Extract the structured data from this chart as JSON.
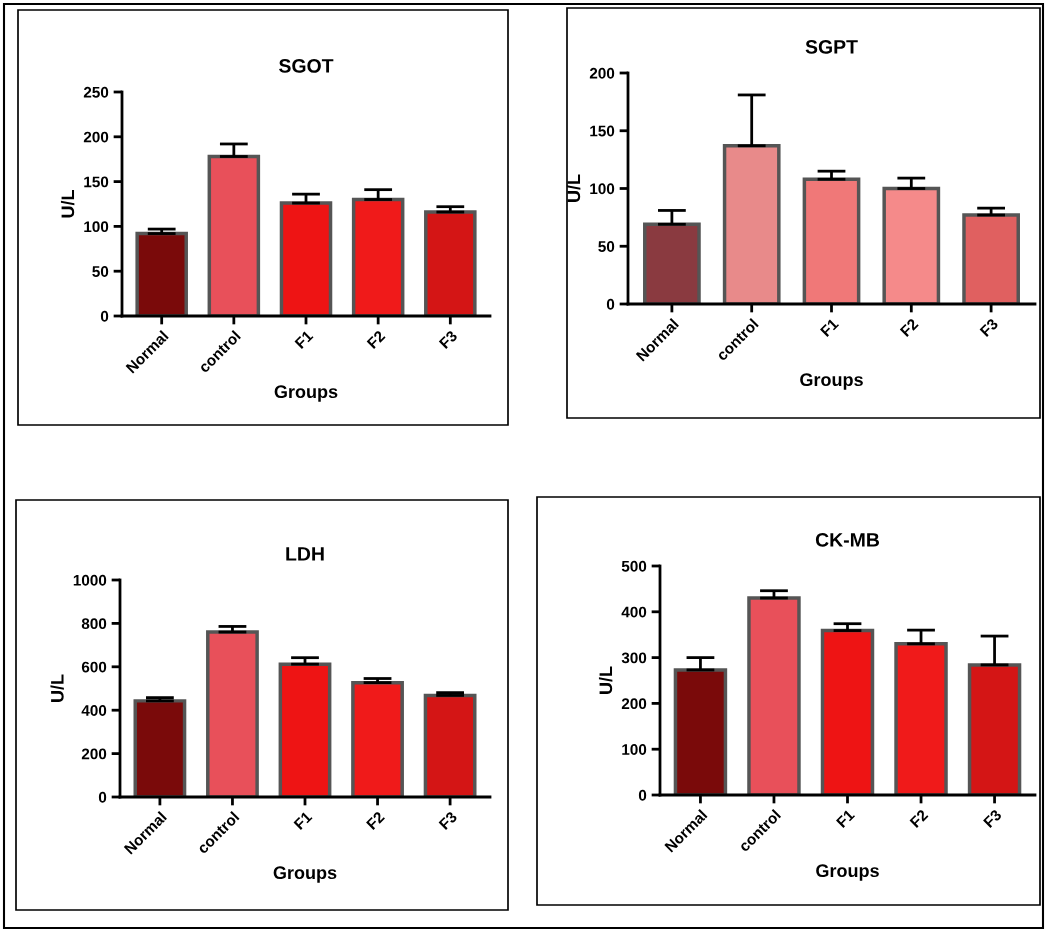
{
  "chart_data": [
    {
      "type": "bar",
      "title": "SGOT",
      "xlabel": "Groups",
      "ylabel": "U/L",
      "categories": [
        "Normal",
        "control",
        "F1",
        "F2",
        "F3"
      ],
      "values": [
        92,
        178,
        126,
        130,
        116
      ],
      "errors": [
        [
          92,
          97
        ],
        [
          178,
          192
        ],
        [
          126,
          136
        ],
        [
          130,
          141
        ],
        [
          116,
          122
        ]
      ],
      "colors": [
        "#7a0a0a",
        "#e8505a",
        "#ee1414",
        "#f01a1a",
        "#d41515"
      ],
      "ylim": [
        0,
        250
      ],
      "yticks": [
        0,
        50,
        100,
        150,
        200,
        250
      ],
      "grid": false
    },
    {
      "type": "bar",
      "title": "SGPT",
      "xlabel": "Groups",
      "ylabel": "U/L",
      "categories": [
        "Normal",
        "control",
        "F1",
        "F2",
        "F3"
      ],
      "values": [
        69,
        137,
        108,
        100,
        77
      ],
      "errors": [
        [
          69,
          81
        ],
        [
          137,
          181
        ],
        [
          108,
          115
        ],
        [
          100,
          109
        ],
        [
          77,
          83
        ]
      ],
      "colors": [
        "#8a3a40",
        "#e88a8a",
        "#f07878",
        "#f58a8a",
        "#e06060"
      ],
      "ylim": [
        0,
        200
      ],
      "yticks": [
        0,
        50,
        100,
        150,
        200
      ],
      "grid": false
    },
    {
      "type": "bar",
      "title": "LDH",
      "xlabel": "Groups",
      "ylabel": "U/L",
      "categories": [
        "Normal",
        "control",
        "F1",
        "F2",
        "F3"
      ],
      "values": [
        443,
        760,
        612,
        527,
        468
      ],
      "errors": [
        [
          443,
          458
        ],
        [
          760,
          786
        ],
        [
          612,
          642
        ],
        [
          527,
          546
        ],
        [
          468,
          481
        ]
      ],
      "colors": [
        "#7a0a0a",
        "#e8505a",
        "#ee1414",
        "#f01a1a",
        "#d41515"
      ],
      "ylim": [
        0,
        1000
      ],
      "yticks": [
        0,
        200,
        400,
        600,
        800,
        1000
      ],
      "grid": false
    },
    {
      "type": "bar",
      "title": "CK-MB",
      "xlabel": "Groups",
      "ylabel": "U/L",
      "categories": [
        "Normal",
        "control",
        "F1",
        "F2",
        "F3"
      ],
      "values": [
        273,
        430,
        359,
        330,
        284
      ],
      "errors": [
        [
          273,
          300
        ],
        [
          430,
          446
        ],
        [
          359,
          374
        ],
        [
          330,
          360
        ],
        [
          284,
          347
        ]
      ],
      "colors": [
        "#7a0a0a",
        "#e8505a",
        "#ee1414",
        "#f01a1a",
        "#d41515"
      ],
      "ylim": [
        0,
        500
      ],
      "yticks": [
        0,
        100,
        200,
        300,
        400,
        500
      ],
      "grid": false
    }
  ]
}
